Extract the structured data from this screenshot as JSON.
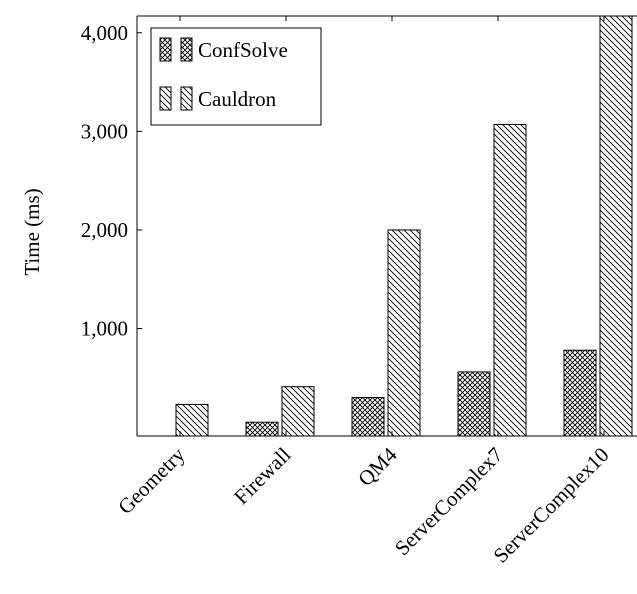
{
  "chart_data": {
    "type": "bar",
    "title": "",
    "xlabel": "",
    "ylabel": "Time (ms)",
    "categories": [
      "Geometry",
      "Firewall",
      "QM4",
      "ServerComplex7",
      "ServerComplex10"
    ],
    "series": [
      {
        "name": "ConfSolve",
        "pattern": "crosshatch",
        "values": [
          0,
          50,
          300,
          560,
          780
        ]
      },
      {
        "name": "Cauldron",
        "pattern": "north-west-lines",
        "values": [
          230,
          410,
          2000,
          3070,
          4170
        ]
      }
    ],
    "ylim": [
      -90,
      4170
    ],
    "yticks": [
      1000,
      2000,
      3000,
      4000
    ],
    "ytick_labels": [
      "1,000",
      "2,000",
      "3,000",
      "4,000"
    ],
    "legend_position": "top-left",
    "grid": false,
    "colors": {
      "fill": "#ffffff",
      "stroke": "#000000",
      "pattern": "#000000"
    }
  }
}
